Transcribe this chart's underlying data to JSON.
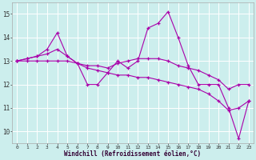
{
  "xlabel": "Windchill (Refroidissement éolien,°C)",
  "background_color": "#cceeed",
  "grid_color": "#ffffff",
  "line_color": "#aa00aa",
  "xlim": [
    -0.5,
    23.5
  ],
  "ylim": [
    9.5,
    15.5
  ],
  "yticks": [
    10,
    11,
    12,
    13,
    14,
    15
  ],
  "xticks": [
    0,
    1,
    2,
    3,
    4,
    5,
    6,
    7,
    8,
    9,
    10,
    11,
    12,
    13,
    14,
    15,
    16,
    17,
    18,
    19,
    20,
    21,
    22,
    23
  ],
  "series": [
    [
      13.0,
      13.1,
      13.2,
      13.5,
      14.2,
      13.2,
      12.9,
      12.0,
      12.0,
      12.5,
      13.0,
      12.7,
      13.0,
      14.4,
      14.6,
      15.1,
      14.0,
      12.8,
      12.0,
      12.0,
      12.0,
      11.0,
      9.7,
      11.3
    ],
    [
      13.0,
      13.1,
      13.2,
      13.3,
      13.5,
      13.2,
      12.9,
      12.8,
      12.8,
      12.7,
      12.9,
      13.0,
      13.1,
      13.1,
      13.1,
      13.0,
      12.8,
      12.7,
      12.6,
      12.4,
      12.2,
      11.8,
      12.0,
      12.0
    ],
    [
      13.0,
      13.0,
      13.0,
      13.0,
      13.0,
      13.0,
      12.9,
      12.7,
      12.6,
      12.5,
      12.4,
      12.4,
      12.3,
      12.3,
      12.2,
      12.1,
      12.0,
      11.9,
      11.8,
      11.6,
      11.3,
      10.9,
      11.0,
      11.3
    ]
  ]
}
